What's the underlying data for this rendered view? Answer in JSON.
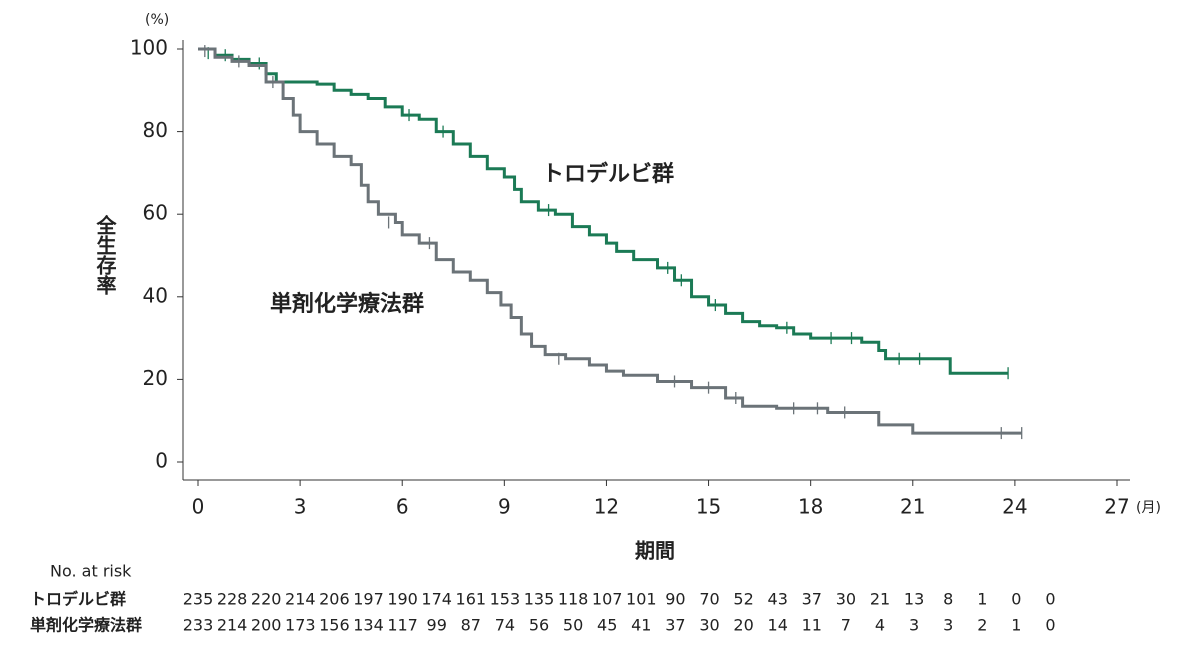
{
  "chart_data": {
    "type": "km",
    "y_unit": "(%)",
    "x_unit": "(月)",
    "x_label": "期間",
    "y_label": "全生存率",
    "xlim": [
      0,
      27
    ],
    "ylim": [
      0,
      100
    ],
    "xticks": [
      0,
      3,
      6,
      9,
      12,
      15,
      18,
      21,
      24,
      27
    ],
    "yticks": [
      0,
      20,
      40,
      60,
      80,
      100
    ],
    "series": [
      {
        "name": "トロデルビ群",
        "color": "#1b7a55",
        "x": [
          0,
          0.5,
          1,
          1.5,
          2,
          2.3,
          3.5,
          4,
          4.5,
          5,
          5.5,
          6,
          6.5,
          7,
          7.5,
          8,
          8.5,
          9,
          9.3,
          9.5,
          10,
          10.5,
          11,
          11.5,
          12,
          12.3,
          12.8,
          13.5,
          14,
          14.5,
          15,
          15.5,
          16,
          16.5,
          17,
          17.5,
          18,
          19.5,
          20,
          20.2,
          22,
          22.1,
          23.8
        ],
        "values": [
          100,
          98.5,
          97.5,
          96.5,
          94,
          92,
          91.5,
          90,
          89,
          88,
          86,
          84,
          83,
          80,
          77,
          74,
          71,
          69,
          66,
          63,
          61,
          60,
          57,
          55,
          53,
          51,
          49,
          47,
          44,
          40,
          38,
          36,
          34,
          33,
          32.5,
          31,
          30,
          29,
          27,
          25,
          25,
          21.5,
          21.5
        ],
        "censored_x": [
          0.3,
          0.8,
          1.8,
          6.2,
          7.2,
          10.3,
          13.8,
          14.2,
          15.2,
          17.3,
          18.6,
          19.2,
          20.6,
          21.2,
          23.8
        ],
        "censored_y": [
          99,
          98.5,
          96.5,
          84,
          80,
          61,
          47,
          44,
          38,
          32.5,
          30,
          30,
          25,
          25,
          21.5
        ]
      },
      {
        "name": "単剤化学療法群",
        "color": "#6b7378",
        "x": [
          0,
          0.5,
          1,
          1.5,
          2,
          2.5,
          2.8,
          3,
          3.5,
          4,
          4.5,
          4.8,
          5,
          5.3,
          5.8,
          6,
          6.5,
          7,
          7.5,
          8,
          8.5,
          8.9,
          9.2,
          9.5,
          9.8,
          10.2,
          10.8,
          11.5,
          12,
          12.5,
          13.5,
          14.5,
          15.5,
          16,
          17,
          18.5,
          20,
          21,
          24.2
        ],
        "values": [
          100,
          98,
          97,
          96,
          92,
          88,
          84,
          80,
          77,
          74,
          72,
          67,
          63,
          60,
          58,
          55,
          53,
          49,
          46,
          44,
          41,
          38,
          35,
          31,
          28,
          26,
          25,
          23.5,
          22,
          21,
          19.5,
          18,
          15.5,
          13.5,
          13,
          12,
          9,
          7,
          7
        ],
        "censored_x": [
          0.2,
          1.2,
          2.2,
          5.6,
          6.8,
          10.6,
          14,
          15,
          15.8,
          17.5,
          18.2,
          19,
          23.6,
          24.2
        ],
        "censored_y": [
          99.5,
          97,
          92,
          58,
          53,
          25,
          19.5,
          18,
          15.5,
          13,
          13,
          12,
          7,
          7
        ]
      }
    ],
    "risk_table": {
      "title": "No. at risk",
      "rows": [
        [
          235,
          228,
          220,
          214,
          206,
          197,
          190,
          174,
          161,
          153,
          135,
          118,
          107,
          101,
          90,
          70,
          52,
          43,
          37,
          30,
          21,
          13,
          8,
          1,
          0,
          0
        ],
        [
          233,
          214,
          200,
          173,
          156,
          134,
          117,
          99,
          87,
          74,
          56,
          50,
          45,
          41,
          37,
          30,
          20,
          14,
          11,
          7,
          4,
          3,
          3,
          2,
          1,
          0
        ]
      ]
    }
  }
}
